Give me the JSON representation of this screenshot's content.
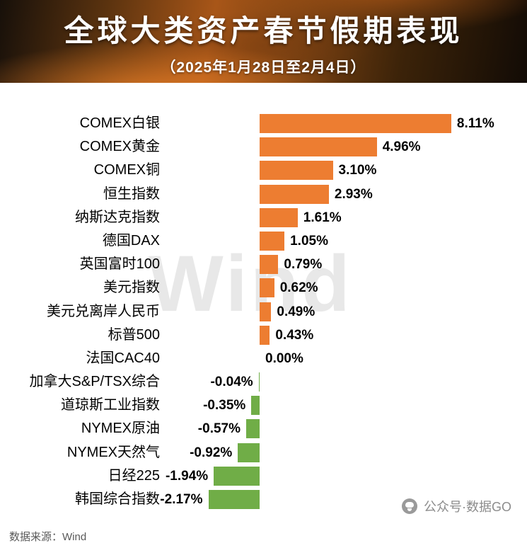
{
  "header": {
    "title": "全球大类资产春节假期表现",
    "subtitle": "（2025年1月28日至2月4日）"
  },
  "chart_data": {
    "type": "bar",
    "orientation": "horizontal",
    "title": "全球大类资产春节假期表现",
    "subtitle": "（2025年1月28日至2月4日）",
    "unit": "%",
    "categories": [
      "COMEX白银",
      "COMEX黄金",
      "COMEX铜",
      "恒生指数",
      "纳斯达克指数",
      "德国DAX",
      "英国富时100",
      "美元指数",
      "美元兑离岸人民币",
      "标普500",
      "法国CAC40",
      "加拿大S&P/TSX综合",
      "道琼斯工业指数",
      "NYMEX原油",
      "NYMEX天然气",
      "日经225",
      "韩国综合指数"
    ],
    "values": [
      8.11,
      4.96,
      3.1,
      2.93,
      1.61,
      1.05,
      0.79,
      0.62,
      0.49,
      0.43,
      0.0,
      -0.04,
      -0.35,
      -0.57,
      -0.92,
      -1.94,
      -2.17
    ],
    "value_labels": [
      "8.11%",
      "4.96%",
      "3.10%",
      "2.93%",
      "1.61%",
      "1.05%",
      "0.79%",
      "0.62%",
      "0.49%",
      "0.43%",
      "0.00%",
      "-0.04%",
      "-0.35%",
      "-0.57%",
      "-0.92%",
      "-1.94%",
      "-2.17%"
    ],
    "positive_color": "#ED7D31",
    "negative_color": "#70AD47",
    "xlim": [
      -2.5,
      9.5
    ],
    "grid": false,
    "legend": "none",
    "watermark": "Wind"
  },
  "footer": {
    "source": "数据来源：Wind",
    "wechat_label": "公众号·数据GO",
    "wechat_icon": "wechat-public-account-icon"
  }
}
